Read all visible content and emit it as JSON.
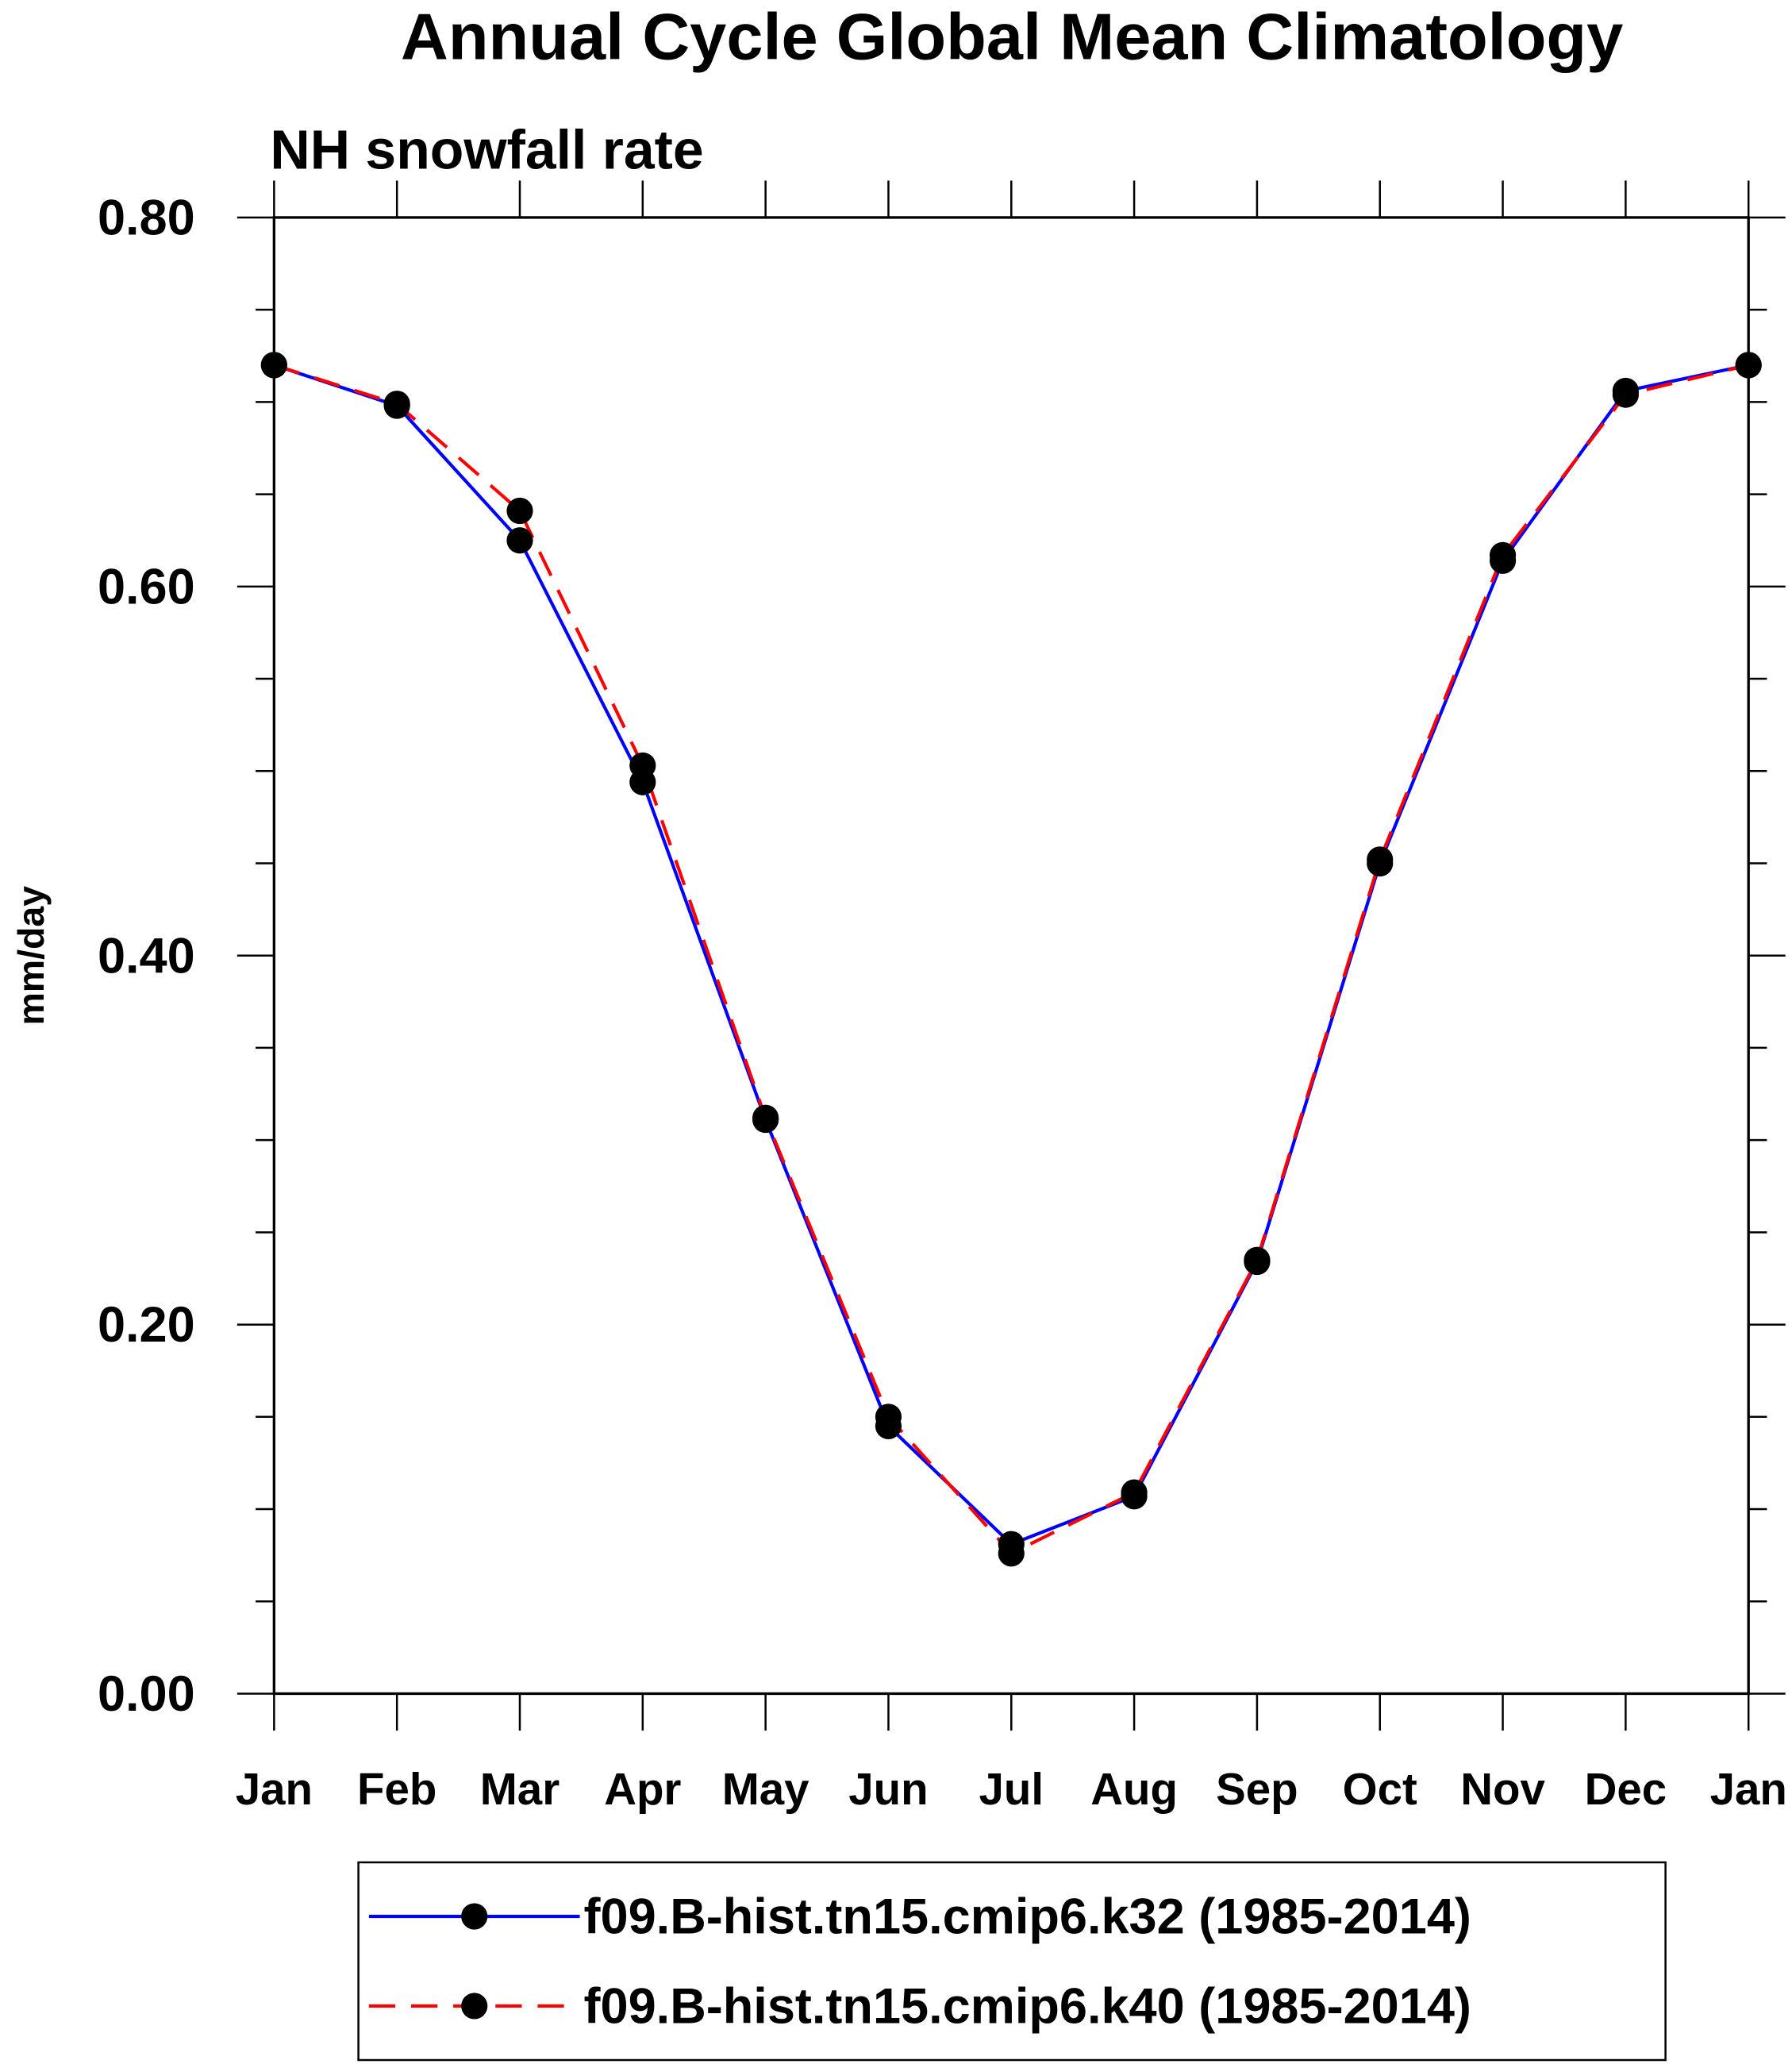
{
  "chart_data": {
    "type": "line",
    "title": "Annual Cycle Global Mean Climatology",
    "subtitle": "NH snowfall rate",
    "xlabel": "",
    "ylabel": "mm/day",
    "ylim": [
      0,
      0.8
    ],
    "yticks": [
      "0.00",
      "0.20",
      "0.40",
      "0.60",
      "0.80"
    ],
    "ytick_values": [
      0,
      0.2,
      0.4,
      0.6,
      0.8
    ],
    "categories": [
      "Jan",
      "Feb",
      "Mar",
      "Apr",
      "May",
      "Jun",
      "Jul",
      "Aug",
      "Sep",
      "Oct",
      "Nov",
      "Dec",
      "Jan"
    ],
    "grid": false,
    "legend_position": "bottom",
    "series": [
      {
        "name": "f09.B-hist.tn15.cmip6.k32 (1985-2014)",
        "color": "#0000ff",
        "dash": "solid",
        "values": [
          0.72,
          0.698,
          0.625,
          0.494,
          0.311,
          0.145,
          0.081,
          0.107,
          0.234,
          0.45,
          0.614,
          0.706,
          0.72
        ]
      },
      {
        "name": "f09.B-hist.tn15.cmip6.k40 (1985-2014)",
        "color": "#ff0000",
        "dash": "dashed",
        "values": [
          0.72,
          0.699,
          0.641,
          0.503,
          0.312,
          0.15,
          0.076,
          0.109,
          0.235,
          0.452,
          0.617,
          0.704,
          0.72
        ]
      }
    ]
  }
}
